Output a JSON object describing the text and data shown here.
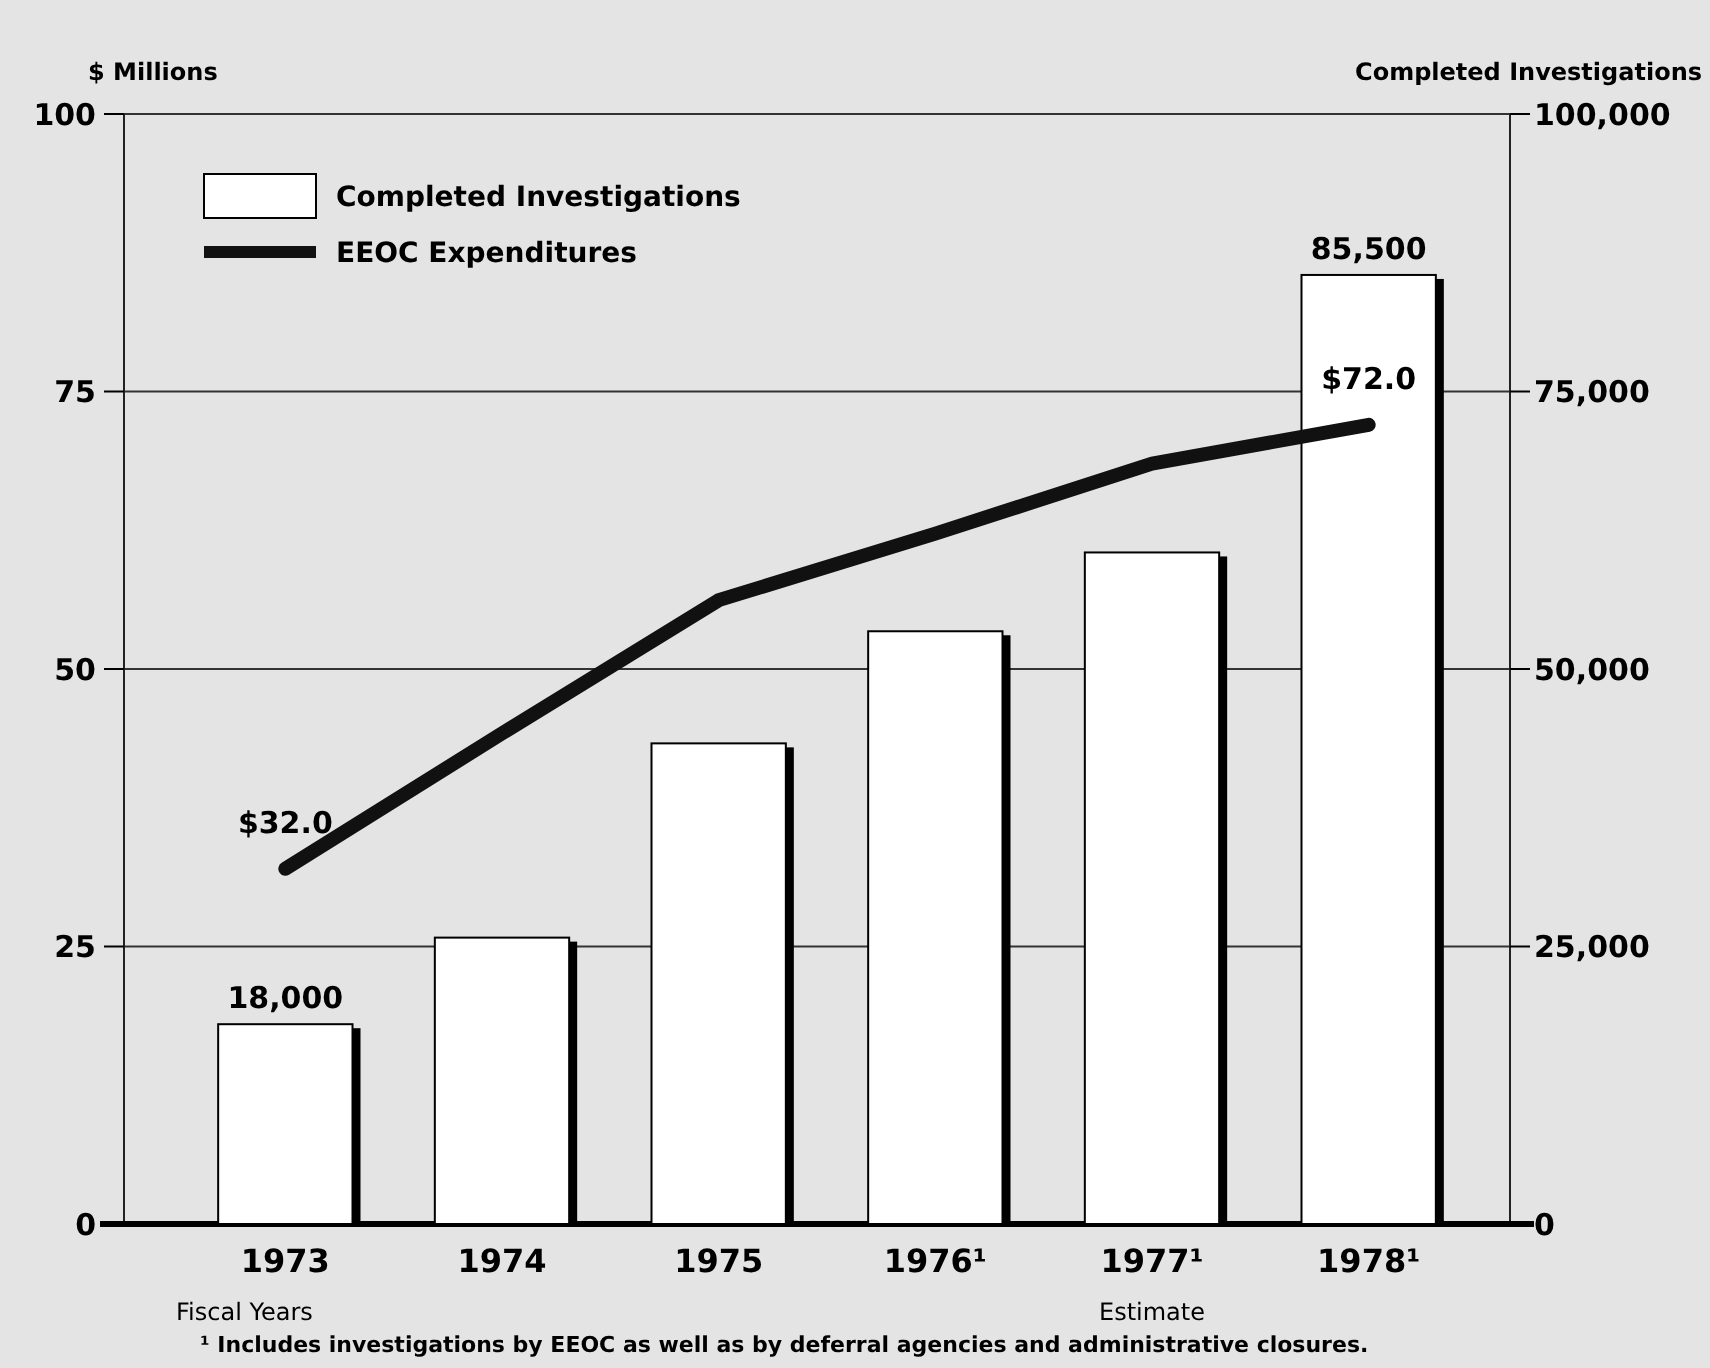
{
  "chart_data": {
    "type": "bar",
    "ylabel": "$ Millions",
    "y2label": "Completed Investigations",
    "categories": [
      "1973",
      "1974",
      "1975",
      "1976¹",
      "1977¹",
      "1978¹"
    ],
    "series": [
      {
        "name": "Completed Investigations",
        "axis": "y2",
        "color": "#ffffff",
        "values": [
          18000,
          25800,
          43300,
          53400,
          60500,
          85500
        ],
        "value_labels": [
          "18,000",
          null,
          null,
          null,
          null,
          "85,500"
        ]
      },
      {
        "name": "EEOC Expenditures",
        "type": "line",
        "axis": "y",
        "color": "#111111",
        "values": [
          32.0,
          44.2,
          56.2,
          62.2,
          68.5,
          72.0
        ],
        "value_labels": [
          "$32.0",
          null,
          null,
          null,
          null,
          "$72.0"
        ]
      }
    ],
    "ylim": [
      0,
      100
    ],
    "yticks": [
      0,
      25,
      50,
      75,
      100
    ],
    "y2lim": [
      0,
      100000
    ],
    "y2ticks": [
      {
        "value": 0,
        "label": "0"
      },
      {
        "value": 25000,
        "label": "25,000"
      },
      {
        "value": 50000,
        "label": "50,000"
      },
      {
        "value": 75000,
        "label": "75,000"
      },
      {
        "value": 100000,
        "label": "100,000"
      }
    ],
    "grid": "y",
    "legend": "top left",
    "annotations": [
      "Fiscal Years",
      "Estimate",
      "¹ Includes investigations by EEOC as well as by deferral agencies and administrative closures."
    ]
  }
}
